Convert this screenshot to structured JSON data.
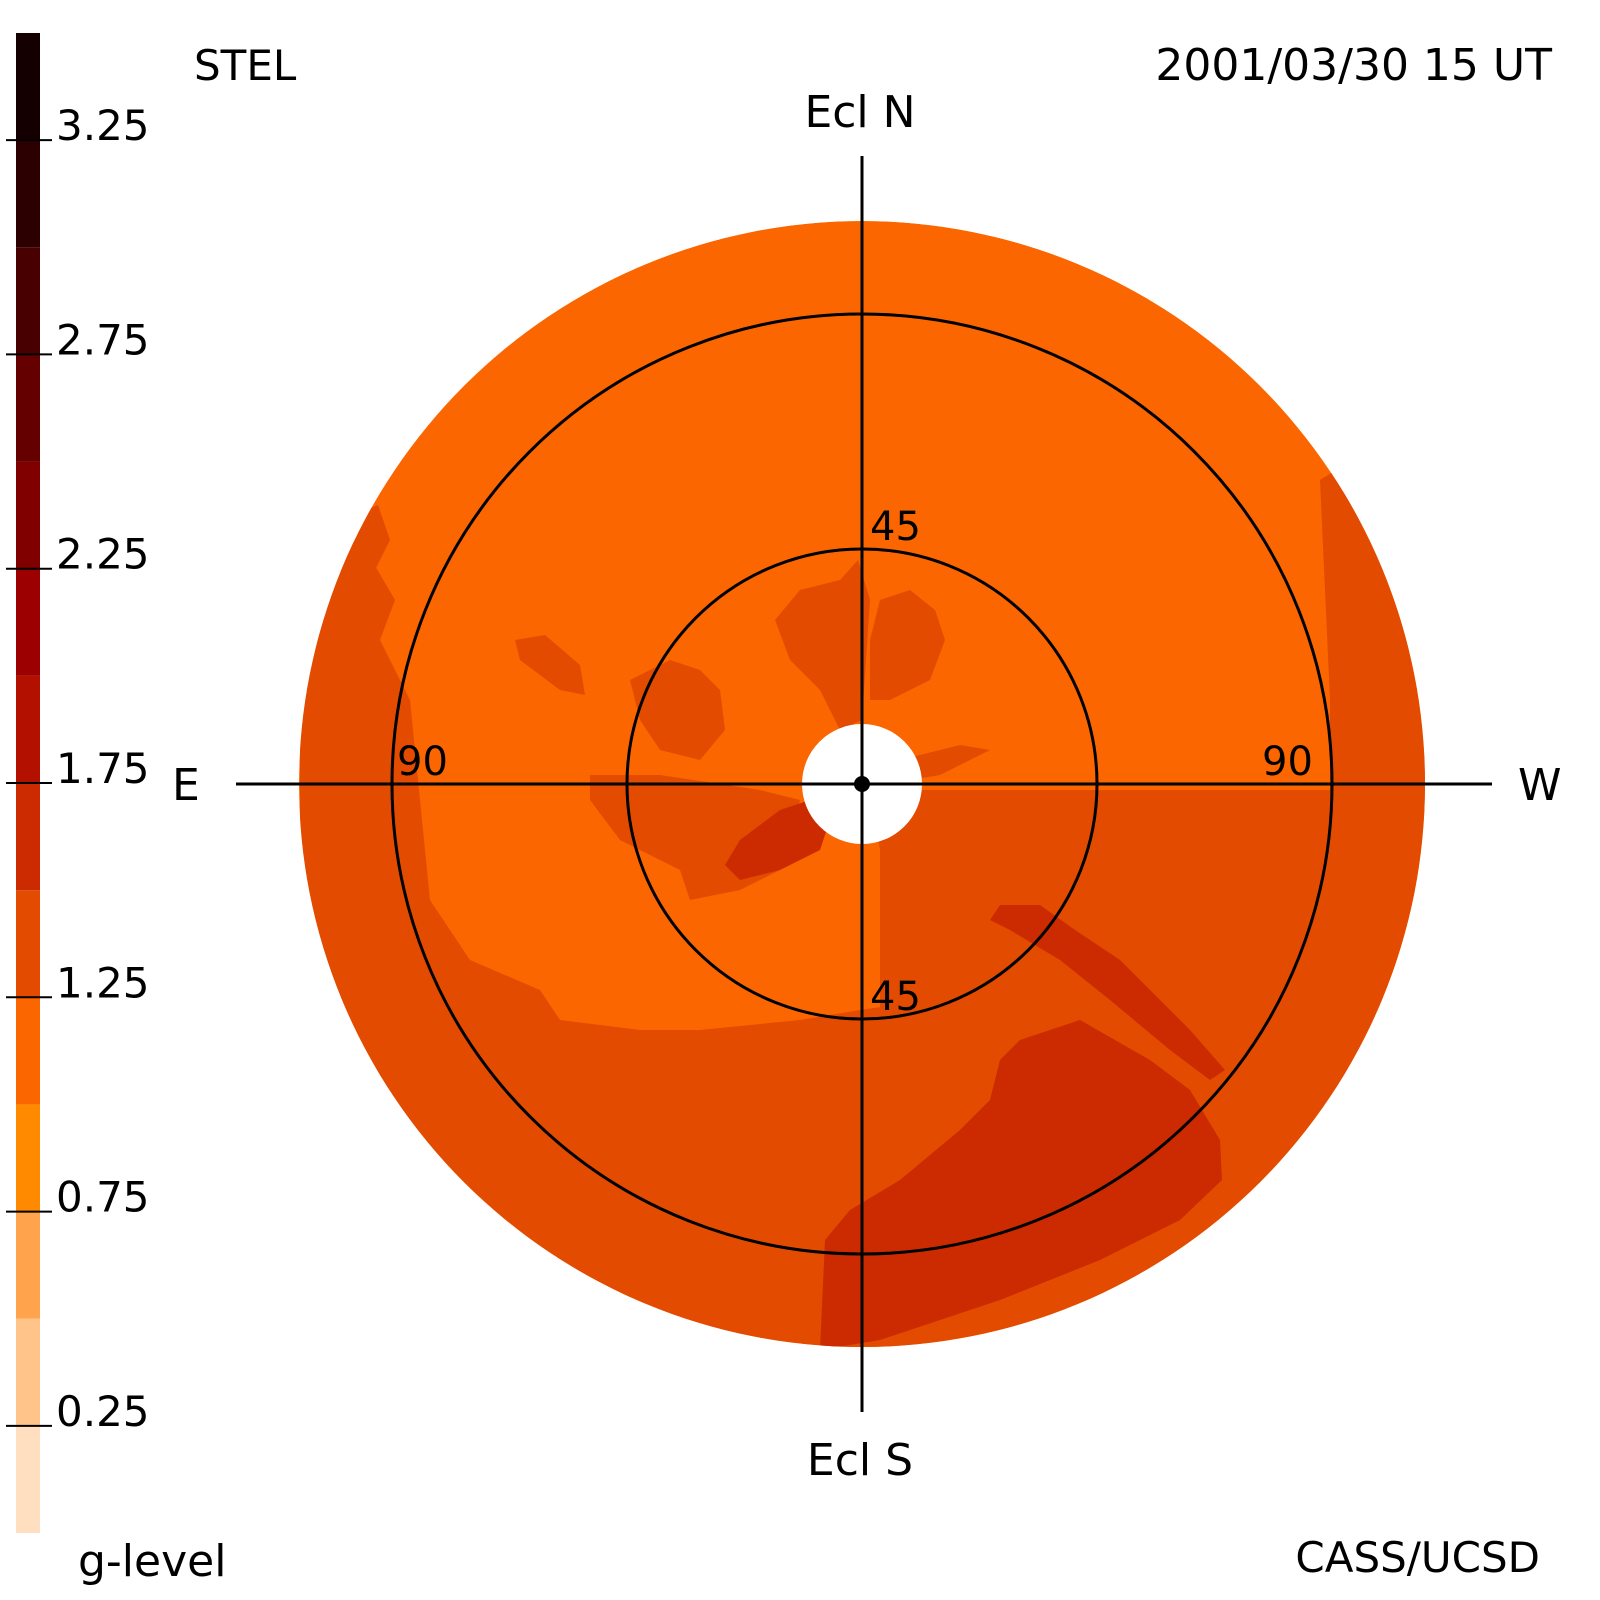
{
  "header": {
    "left_label": "STEL",
    "timestamp": "2001/03/30 15 UT"
  },
  "footer": {
    "legend_label": "g-level",
    "credit": "CASS/UCSD"
  },
  "compass": {
    "north": "Ecl N",
    "south": "Ecl S",
    "east": "E",
    "west": "W"
  },
  "rings": {
    "inner_north": "45",
    "inner_south": "45",
    "outer_east": "90",
    "outer_west": "90"
  },
  "colors": {
    "map_base": "#fc6600",
    "map_mid": "#e34b00",
    "map_high": "#cc2a00",
    "occulter": "#ffffff",
    "lines": "#000000"
  },
  "chart_data": {
    "type": "heatmap",
    "projection": "fisheye sky map centered on the Sun",
    "colorbar": {
      "label": "g-level",
      "range": [
        0,
        3.5
      ],
      "tick_labels": [
        "3.25",
        "2.75",
        "2.25",
        "1.75",
        "1.25",
        "0.75",
        "0.25"
      ],
      "tick_values": [
        3.25,
        2.75,
        2.25,
        1.75,
        1.25,
        0.75,
        0.25
      ],
      "bands": [
        {
          "min": 0.0,
          "max": 0.25,
          "color": "#ffdfc0"
        },
        {
          "min": 0.25,
          "max": 0.5,
          "color": "#ffc48a"
        },
        {
          "min": 0.5,
          "max": 0.75,
          "color": "#ffa44c"
        },
        {
          "min": 0.75,
          "max": 1.0,
          "color": "#ff8a00"
        },
        {
          "min": 1.0,
          "max": 1.25,
          "color": "#fc6600"
        },
        {
          "min": 1.25,
          "max": 1.5,
          "color": "#e34b00"
        },
        {
          "min": 1.5,
          "max": 1.75,
          "color": "#cc2a00"
        },
        {
          "min": 1.75,
          "max": 2.0,
          "color": "#b41000"
        },
        {
          "min": 2.0,
          "max": 2.25,
          "color": "#9c0000"
        },
        {
          "min": 2.25,
          "max": 2.5,
          "color": "#800000"
        },
        {
          "min": 2.5,
          "max": 2.75,
          "color": "#640000"
        },
        {
          "min": 2.75,
          "max": 3.0,
          "color": "#480000"
        },
        {
          "min": 3.0,
          "max": 3.25,
          "color": "#2c0000"
        },
        {
          "min": 3.25,
          "max": 3.5,
          "color": "#140000"
        }
      ]
    },
    "elongation_circles_deg": [
      45,
      90
    ],
    "map_extent_deg": 120,
    "occulter_deg": 10,
    "regions": [
      {
        "name": "outer-west-band",
        "level": 1.3
      },
      {
        "name": "outer-south-band",
        "level": 1.3
      },
      {
        "name": "outer-east-band",
        "level": 1.3
      },
      {
        "name": "north-sky",
        "level": 1.1
      },
      {
        "name": "inner-lobes",
        "level": 1.3
      },
      {
        "name": "southwest-enhancement",
        "level": 1.6
      },
      {
        "name": "inner-core-streak",
        "level": 1.6
      }
    ]
  }
}
